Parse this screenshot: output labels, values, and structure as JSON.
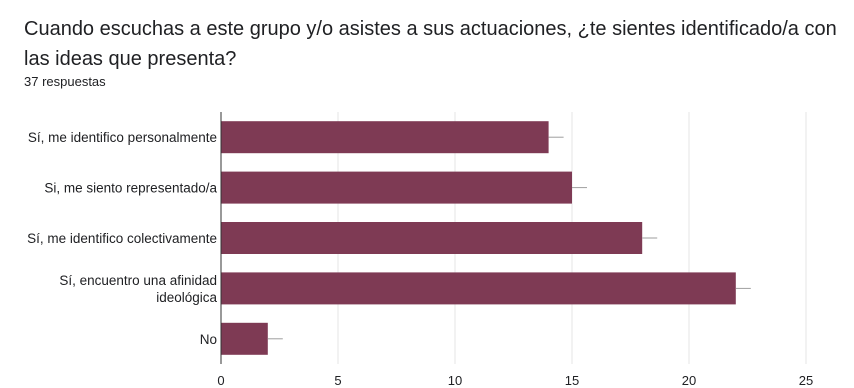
{
  "question": {
    "title": "Cuando escuchas a este grupo y/o asistes a sus actuaciones, ¿te sientes identificado/a con las ideas que presenta?",
    "response_count": "37 respuestas"
  },
  "chart_data": {
    "type": "bar",
    "orientation": "horizontal",
    "categories": [
      [
        "Sí, me identifico personalmente"
      ],
      [
        "Si, me siento representado/a"
      ],
      [
        "Sí, me identifico colectivamente"
      ],
      [
        "Sí, encuentro una afinidad",
        "ideológica"
      ],
      [
        "No"
      ]
    ],
    "values": [
      14,
      15,
      18,
      22,
      2
    ],
    "xlim": [
      0,
      25
    ],
    "xticks": [
      "0",
      "5",
      "10",
      "15",
      "20",
      "25"
    ],
    "grid": true,
    "bar_color": "#7e3a54"
  }
}
